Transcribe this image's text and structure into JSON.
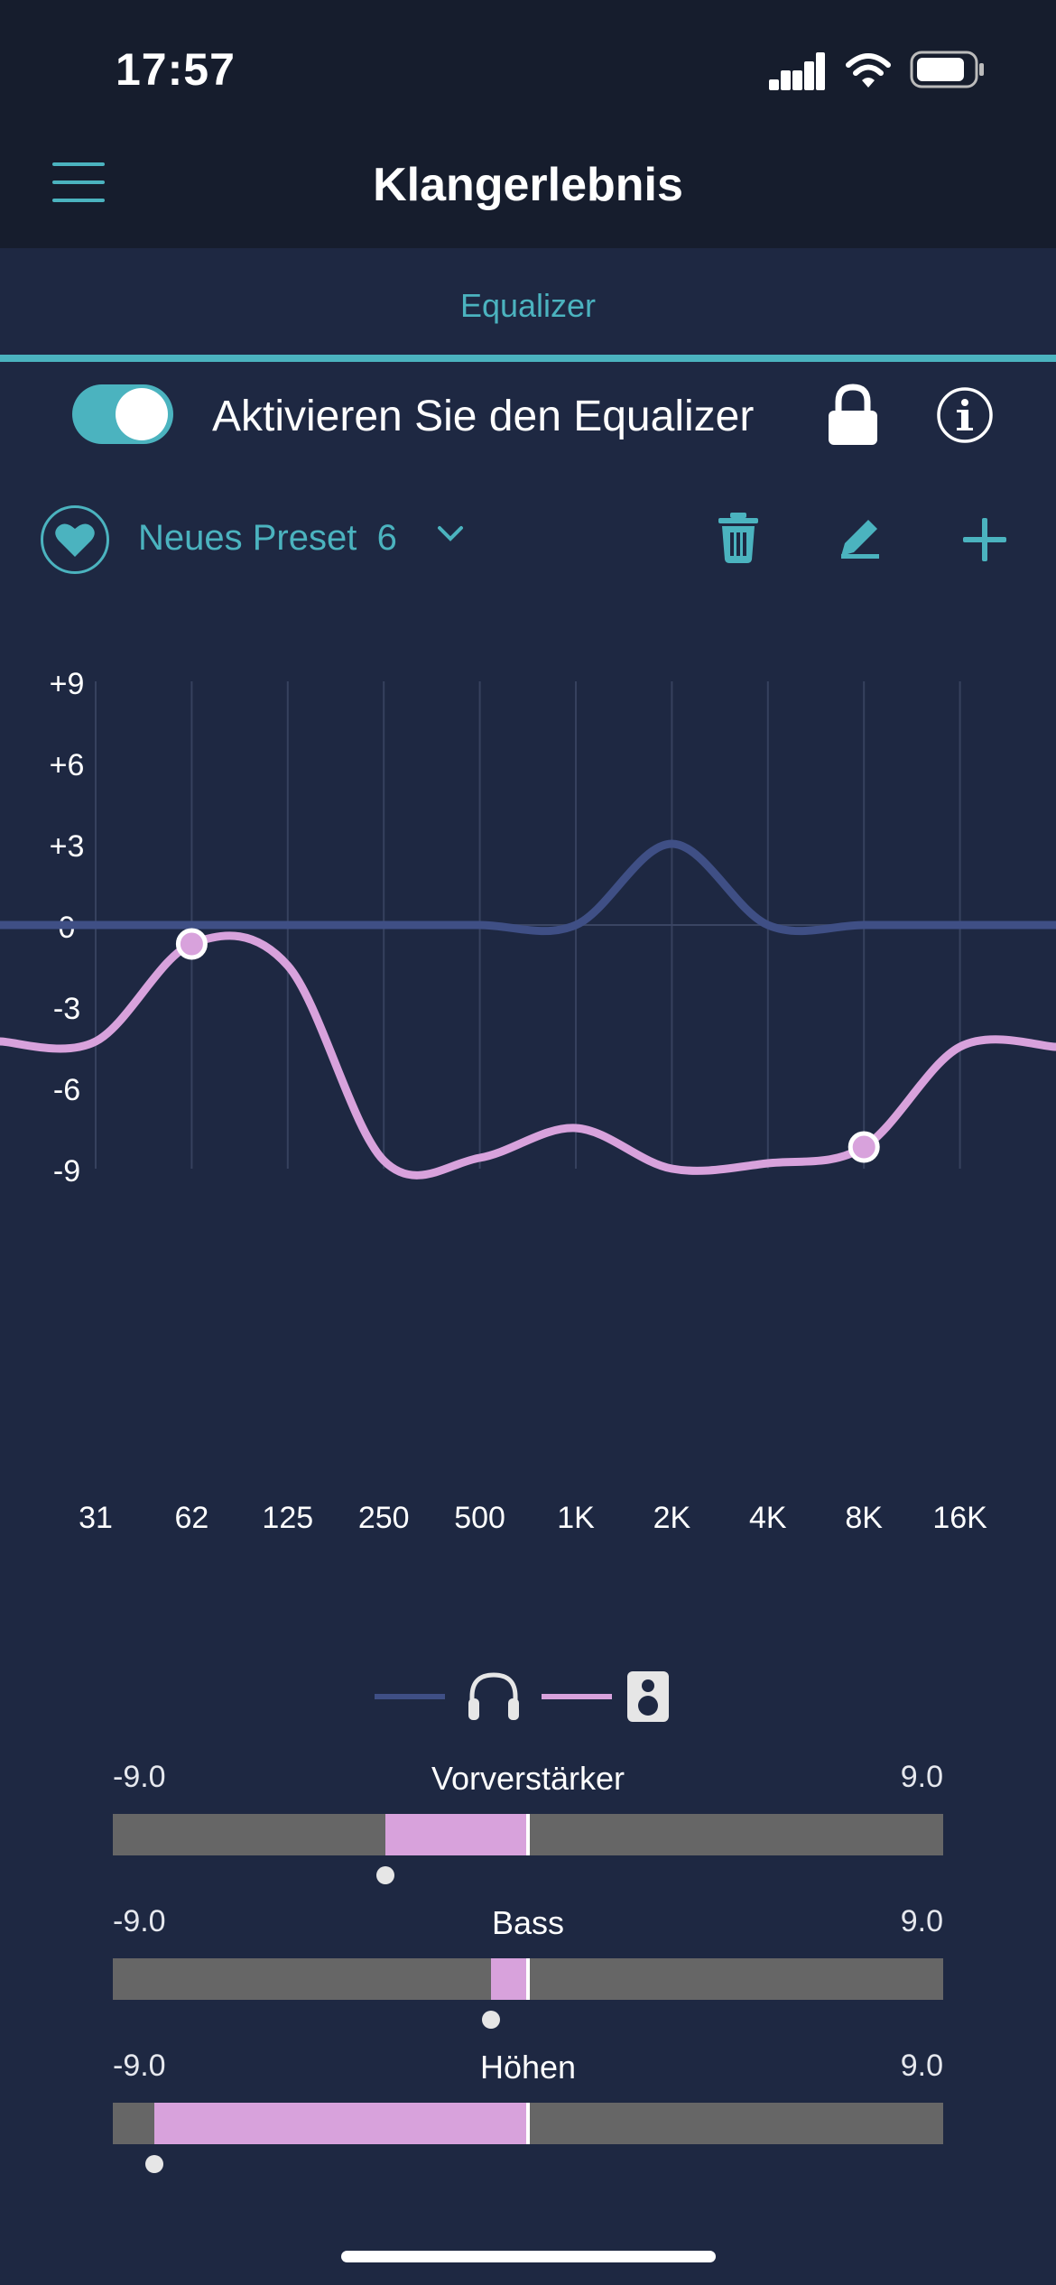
{
  "status_bar": {
    "time": "17:57",
    "icons": [
      "cellular-signal-icon",
      "wifi-icon",
      "battery-icon"
    ]
  },
  "header": {
    "title": "Klangerlebnis",
    "menu_icon": "hamburger-menu-icon"
  },
  "tabs": [
    {
      "label": "Equalizer",
      "active": true
    }
  ],
  "equalizer_toggle": {
    "label": "Aktivieren Sie den Equalizer",
    "enabled": true
  },
  "preset": {
    "name": "Neues Preset  6",
    "favorite_icon": "heart-icon",
    "actions": [
      "trash-icon",
      "edit-icon",
      "plus-icon"
    ]
  },
  "chart_data": {
    "type": "line",
    "title": "",
    "xlabel": "",
    "ylabel": "",
    "categories": [
      "31",
      "62",
      "125",
      "250",
      "500",
      "1K",
      "2K",
      "4K",
      "8K",
      "16K"
    ],
    "y_ticks": [
      "+9",
      "+6",
      "+3",
      "0",
      "-3",
      "-6",
      "-9"
    ],
    "ylim": [
      -9,
      9
    ],
    "grid": true,
    "series": [
      {
        "name": "headphones",
        "color": "#3f4f85",
        "values": [
          0,
          0,
          0,
          0,
          0,
          0,
          3,
          0,
          0,
          0
        ]
      },
      {
        "name": "speaker",
        "color": "#d8a2dc",
        "values": [
          -4.3,
          -0.7,
          -1.5,
          -8.7,
          -8.6,
          -7.5,
          -9.0,
          -8.8,
          -8.2,
          -4.5
        ]
      }
    ],
    "control_points": [
      {
        "category": "62",
        "value": -0.7
      },
      {
        "category": "8K",
        "value": -8.2
      }
    ],
    "legend": [
      {
        "icon": "headphones-icon",
        "color": "#3f4f85"
      },
      {
        "icon": "speaker-icon",
        "color": "#d8a2dc"
      }
    ]
  },
  "sliders": [
    {
      "title": "Vorverstärker",
      "min_label": "-9.0",
      "max_label": "9.0",
      "min": -9,
      "max": 9,
      "value": -3.1
    },
    {
      "title": "Bass",
      "min_label": "-9.0",
      "max_label": "9.0",
      "min": -9,
      "max": 9,
      "value": -0.8
    },
    {
      "title": "Höhen",
      "min_label": "-9.0",
      "max_label": "9.0",
      "min": -9,
      "max": 9,
      "value": -8.1
    }
  ]
}
